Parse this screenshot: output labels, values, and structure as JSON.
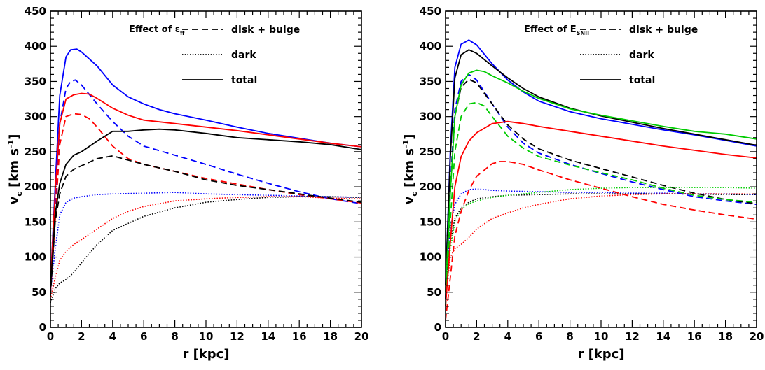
{
  "chart_data": [
    {
      "type": "line",
      "annotation": "Effect of ε",
      "annotation_sub": "ff",
      "xlabel": "r [kpc]",
      "ylabel": "v",
      "ylabel_sub": "c",
      "ylabel_units": "[km s",
      "ylabel_exp": "-1",
      "ylabel_close": "]",
      "xlim": [
        0,
        20
      ],
      "ylim": [
        0,
        450
      ],
      "xticks": [
        0,
        2,
        4,
        6,
        8,
        10,
        12,
        14,
        16,
        18,
        20
      ],
      "yticks": [
        0,
        50,
        100,
        150,
        200,
        250,
        300,
        350,
        400,
        450
      ],
      "legend": {
        "position": "top-right",
        "entries": [
          {
            "label": "disk + bulge",
            "style": "dashed"
          },
          {
            "label": "dark",
            "style": "dotted"
          },
          {
            "label": "total",
            "style": "solid"
          }
        ]
      },
      "series": [
        {
          "color": "#0000ff",
          "style": "solid",
          "x": [
            0,
            0.3,
            0.6,
            1.0,
            1.3,
            1.7,
            2.0,
            3,
            4,
            5,
            6,
            7,
            8,
            10,
            12,
            14,
            16,
            18,
            20
          ],
          "y": [
            60,
            200,
            330,
            385,
            395,
            396,
            392,
            372,
            345,
            328,
            318,
            310,
            304,
            295,
            285,
            276,
            269,
            262,
            257
          ]
        },
        {
          "color": "#0000ff",
          "style": "dashed",
          "x": [
            0,
            0.3,
            0.6,
            1.0,
            1.3,
            1.6,
            2.0,
            3,
            4,
            5,
            6,
            8,
            10,
            12,
            14,
            16,
            18,
            20
          ],
          "y": [
            50,
            160,
            290,
            340,
            350,
            352,
            345,
            318,
            293,
            272,
            258,
            245,
            232,
            218,
            205,
            193,
            183,
            176
          ]
        },
        {
          "color": "#0000ff",
          "style": "dotted",
          "x": [
            0,
            0.3,
            0.6,
            1.0,
            1.5,
            2,
            3,
            4,
            6,
            8,
            10,
            12,
            14,
            16,
            18,
            20
          ],
          "y": [
            50,
            110,
            160,
            178,
            184,
            186,
            189,
            190,
            191,
            192,
            190,
            189,
            188,
            187,
            186,
            185
          ]
        },
        {
          "color": "#ff0000",
          "style": "solid",
          "x": [
            0,
            0.3,
            0.6,
            1.0,
            1.5,
            2.0,
            2.5,
            3,
            4,
            5,
            6,
            8,
            10,
            12,
            14,
            16,
            18,
            20
          ],
          "y": [
            60,
            190,
            290,
            325,
            331,
            333,
            332,
            326,
            312,
            302,
            295,
            290,
            285,
            280,
            274,
            268,
            262,
            257
          ]
        },
        {
          "color": "#ff0000",
          "style": "dashed",
          "x": [
            0,
            0.3,
            0.6,
            1.0,
            1.5,
            2.0,
            2.5,
            3,
            4,
            5,
            6,
            8,
            10,
            12,
            14,
            16,
            18,
            20
          ],
          "y": [
            50,
            150,
            260,
            300,
            304,
            303,
            297,
            285,
            258,
            240,
            232,
            222,
            212,
            204,
            196,
            189,
            183,
            177
          ]
        },
        {
          "color": "#ff0000",
          "style": "dotted",
          "x": [
            0,
            0.3,
            0.6,
            1.0,
            1.5,
            2,
            3,
            4,
            5,
            6,
            8,
            10,
            12,
            14,
            16,
            18,
            20
          ],
          "y": [
            40,
            70,
            95,
            108,
            118,
            125,
            140,
            155,
            165,
            172,
            180,
            183,
            185,
            186,
            186,
            184,
            183
          ]
        },
        {
          "color": "#000000",
          "style": "solid",
          "x": [
            0,
            0.3,
            0.6,
            1.0,
            1.5,
            2.0,
            3,
            4,
            5,
            6,
            7,
            8,
            10,
            12,
            14,
            16,
            18,
            20
          ],
          "y": [
            55,
            160,
            205,
            232,
            245,
            250,
            265,
            279,
            279,
            281,
            282,
            281,
            276,
            270,
            267,
            264,
            260,
            253
          ]
        },
        {
          "color": "#000000",
          "style": "dashed",
          "x": [
            0,
            0.3,
            0.6,
            1.0,
            1.5,
            2.0,
            3,
            4,
            5,
            6,
            8,
            10,
            12,
            14,
            16,
            18,
            20
          ],
          "y": [
            45,
            150,
            190,
            215,
            225,
            230,
            240,
            244,
            238,
            232,
            222,
            210,
            202,
            196,
            190,
            184,
            178
          ]
        },
        {
          "color": "#000000",
          "style": "dotted",
          "x": [
            0,
            0.3,
            0.6,
            1.0,
            1.5,
            2,
            3,
            4,
            5,
            6,
            8,
            10,
            12,
            14,
            16,
            18,
            20
          ],
          "y": [
            35,
            55,
            63,
            68,
            78,
            92,
            118,
            138,
            148,
            158,
            170,
            178,
            182,
            185,
            186,
            186,
            185
          ]
        }
      ]
    },
    {
      "type": "line",
      "annotation": "Effect of E",
      "annotation_sub": "SNII",
      "xlabel": "r [kpc]",
      "ylabel": "v",
      "ylabel_sub": "c",
      "ylabel_units": "[km s",
      "ylabel_exp": "-1",
      "ylabel_close": "]",
      "xlim": [
        0,
        20
      ],
      "ylim": [
        0,
        450
      ],
      "xticks": [
        0,
        2,
        4,
        6,
        8,
        10,
        12,
        14,
        16,
        18,
        20
      ],
      "yticks": [
        0,
        50,
        100,
        150,
        200,
        250,
        300,
        350,
        400,
        450
      ],
      "legend": {
        "position": "top-right",
        "entries": [
          {
            "label": "disk + bulge",
            "style": "dashed"
          },
          {
            "label": "dark",
            "style": "dotted"
          },
          {
            "label": "total",
            "style": "solid"
          }
        ]
      },
      "series": [
        {
          "color": "#0000ff",
          "style": "solid",
          "x": [
            0,
            0.3,
            0.6,
            1.0,
            1.5,
            2.0,
            3,
            4,
            5,
            6,
            8,
            10,
            12,
            14,
            16,
            18,
            20
          ],
          "y": [
            60,
            250,
            370,
            403,
            409,
            402,
            375,
            352,
            335,
            322,
            307,
            297,
            289,
            281,
            274,
            266,
            258
          ]
        },
        {
          "color": "#0000ff",
          "style": "dashed",
          "x": [
            0,
            0.3,
            0.6,
            1.0,
            1.5,
            2.0,
            3,
            4,
            5,
            6,
            8,
            10,
            12,
            14,
            16,
            18,
            20
          ],
          "y": [
            40,
            200,
            310,
            350,
            360,
            352,
            318,
            285,
            262,
            248,
            232,
            219,
            207,
            196,
            186,
            180,
            175
          ]
        },
        {
          "color": "#0000ff",
          "style": "dotted",
          "x": [
            0,
            0.3,
            0.6,
            1.0,
            1.5,
            2,
            3,
            4,
            6,
            8,
            10,
            12,
            14,
            16,
            18,
            20
          ],
          "y": [
            60,
            140,
            175,
            190,
            196,
            197,
            195,
            194,
            193,
            192,
            192,
            191,
            191,
            190,
            190,
            189
          ]
        },
        {
          "color": "#000000",
          "style": "solid",
          "x": [
            0,
            0.3,
            0.6,
            1.0,
            1.5,
            2.0,
            3,
            4,
            5,
            6,
            8,
            10,
            12,
            14,
            16,
            18,
            20
          ],
          "y": [
            60,
            240,
            355,
            388,
            395,
            390,
            372,
            355,
            340,
            328,
            312,
            301,
            292,
            283,
            275,
            267,
            259
          ]
        },
        {
          "color": "#000000",
          "style": "dashed",
          "x": [
            0,
            0.3,
            0.6,
            1.0,
            1.5,
            2.0,
            3,
            4,
            5,
            6,
            8,
            10,
            12,
            14,
            16,
            18,
            20
          ],
          "y": [
            40,
            190,
            300,
            342,
            353,
            348,
            318,
            288,
            268,
            254,
            238,
            226,
            214,
            202,
            191,
            182,
            176
          ]
        },
        {
          "color": "#000000",
          "style": "dotted",
          "x": [
            0,
            0.3,
            0.6,
            1.0,
            1.5,
            2,
            3,
            4,
            6,
            8,
            10,
            12,
            14,
            16,
            18,
            20
          ],
          "y": [
            60,
            120,
            155,
            170,
            178,
            183,
            186,
            188,
            189,
            190,
            190,
            190,
            190,
            190,
            189,
            189
          ]
        },
        {
          "color": "#00cc00",
          "style": "solid",
          "x": [
            0,
            0.3,
            0.6,
            1.0,
            1.5,
            2.0,
            2.5,
            3,
            4,
            5,
            6,
            8,
            10,
            12,
            14,
            16,
            18,
            20
          ],
          "y": [
            50,
            190,
            300,
            345,
            362,
            366,
            364,
            358,
            348,
            336,
            326,
            311,
            302,
            294,
            286,
            279,
            275,
            268
          ]
        },
        {
          "color": "#00cc00",
          "style": "dashed",
          "x": [
            0,
            0.3,
            0.6,
            1.0,
            1.5,
            2.0,
            2.5,
            3,
            4,
            5,
            6,
            8,
            10,
            12,
            14,
            16,
            18,
            20
          ],
          "y": [
            30,
            150,
            250,
            300,
            318,
            320,
            315,
            300,
            272,
            255,
            243,
            231,
            220,
            210,
            198,
            188,
            182,
            178
          ]
        },
        {
          "color": "#00cc00",
          "style": "dotted",
          "x": [
            0,
            0.3,
            0.6,
            1.0,
            1.5,
            2,
            3,
            4,
            6,
            8,
            10,
            12,
            14,
            16,
            18,
            20
          ],
          "y": [
            50,
            110,
            150,
            168,
            176,
            180,
            185,
            188,
            192,
            196,
            198,
            199,
            199,
            199,
            199,
            198
          ]
        },
        {
          "color": "#ff0000",
          "style": "solid",
          "x": [
            0,
            0.3,
            0.6,
            1.0,
            1.5,
            2.0,
            3,
            4,
            5,
            6,
            8,
            10,
            12,
            14,
            16,
            18,
            20
          ],
          "y": [
            30,
            120,
            200,
            243,
            265,
            277,
            290,
            293,
            290,
            286,
            279,
            272,
            265,
            258,
            252,
            246,
            241
          ]
        },
        {
          "color": "#ff0000",
          "style": "dashed",
          "x": [
            0,
            0.3,
            0.6,
            1.0,
            1.5,
            2.0,
            3,
            3.5,
            4,
            5,
            6,
            8,
            10,
            12,
            14,
            16,
            18,
            20
          ],
          "y": [
            10,
            70,
            130,
            165,
            195,
            215,
            233,
            236,
            236,
            232,
            224,
            210,
            198,
            186,
            175,
            167,
            160,
            154
          ]
        },
        {
          "color": "#ff0000",
          "style": "dotted",
          "x": [
            0,
            0.3,
            0.6,
            1.0,
            1.5,
            2,
            3,
            4,
            5,
            6,
            8,
            10,
            12,
            14,
            16,
            18,
            20
          ],
          "y": [
            40,
            100,
            112,
            118,
            128,
            140,
            155,
            163,
            170,
            175,
            183,
            187,
            189,
            190,
            190,
            190,
            190
          ]
        }
      ]
    }
  ]
}
